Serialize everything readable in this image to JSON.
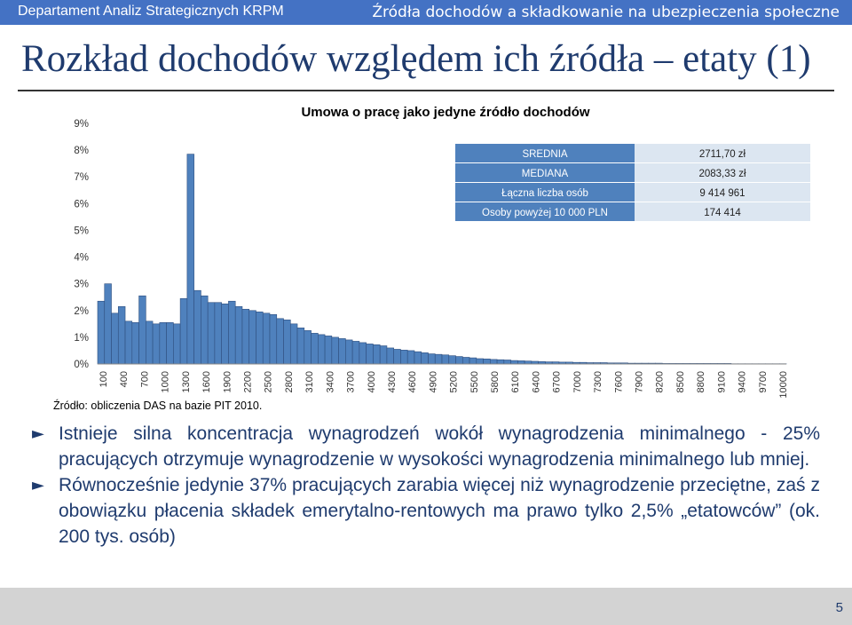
{
  "header": {
    "left_text": "Departament Analiz Strategicznych KRPM",
    "right_text": "Źródła dochodów a składkowanie na ubezpieczenia społeczne"
  },
  "slide": {
    "title": "Rozkład dochodów względem ich źródła – etaty (1)"
  },
  "chart_data": {
    "type": "bar",
    "title": "Umowa o pracę jako jedyne źródło dochodów",
    "xlabel": "",
    "ylabel": "",
    "ylim": [
      0,
      9
    ],
    "y_ticks": [
      "0%",
      "1%",
      "2%",
      "3%",
      "4%",
      "5%",
      "6%",
      "7%",
      "8%",
      "9%"
    ],
    "x_tick_labels": [
      "100",
      "400",
      "700",
      "1000",
      "1300",
      "1600",
      "1900",
      "2200",
      "2500",
      "2800",
      "3100",
      "3400",
      "3700",
      "4000",
      "4300",
      "4600",
      "4900",
      "5200",
      "5500",
      "5800",
      "6100",
      "6400",
      "6700",
      "7000",
      "7300",
      "7600",
      "7900",
      "8200",
      "8500",
      "8800",
      "9100",
      "9400",
      "9700",
      "10000"
    ],
    "values": [
      2.35,
      3.0,
      1.9,
      2.15,
      1.6,
      1.55,
      2.55,
      1.6,
      1.5,
      1.55,
      1.55,
      1.5,
      2.45,
      7.85,
      2.75,
      2.55,
      2.3,
      2.3,
      2.25,
      2.35,
      2.15,
      2.05,
      2.0,
      1.95,
      1.9,
      1.85,
      1.7,
      1.65,
      1.5,
      1.35,
      1.25,
      1.15,
      1.1,
      1.05,
      1.0,
      0.95,
      0.9,
      0.85,
      0.8,
      0.75,
      0.72,
      0.68,
      0.6,
      0.55,
      0.52,
      0.5,
      0.46,
      0.42,
      0.38,
      0.36,
      0.34,
      0.31,
      0.28,
      0.25,
      0.23,
      0.2,
      0.19,
      0.17,
      0.16,
      0.15,
      0.13,
      0.12,
      0.11,
      0.1,
      0.09,
      0.08,
      0.08,
      0.07,
      0.07,
      0.06,
      0.06,
      0.05,
      0.05,
      0.05,
      0.04,
      0.04,
      0.04,
      0.03,
      0.03,
      0.03,
      0.03,
      0.03,
      0.02,
      0.02,
      0.02,
      0.02,
      0.02,
      0.02,
      0.02,
      0.02,
      0.02,
      0.02,
      0.01,
      0.01,
      0.01,
      0.01,
      0.01,
      0.01,
      0.01,
      0.01
    ],
    "bar_color": "#4f81bd",
    "grid": false,
    "legend": "none",
    "stats_table": [
      {
        "label": "SREDNIA",
        "value": "2711,70 zł"
      },
      {
        "label": "MEDIANA",
        "value": "2083,33 zł"
      },
      {
        "label": "Łączna liczba osób",
        "value": "9 414 961"
      },
      {
        "label": "Osoby powyżej 10 000 PLN",
        "value": "174 414"
      }
    ]
  },
  "source_note": "Źródło: obliczenia DAS na bazie PIT 2010.",
  "bullets": [
    {
      "marker": "►",
      "text": "Istnieje silna koncentracja wynagrodzeń wokół wynagrodzenia minimalnego - 25% pracujących otrzymuje wynagrodzenie w wysokości wynagrodzenia minimalnego lub mniej."
    },
    {
      "marker": "►",
      "text": "Równocześnie jedynie 37% pracujących zarabia więcej niż wynagrodzenie przeciętne, zaś z obowiązku płacenia składek emerytalno-rentowych ma prawo tylko 2,5% „etatowców” (ok. 200 tys. osób)"
    }
  ],
  "footer": {
    "page_number": "5"
  },
  "colors": {
    "header_bg": "#4472c4",
    "title_text": "#1f3b6e",
    "bar": "#4f81bd",
    "table_label_bg": "#4f81bd",
    "table_value_bg": "#dce6f1",
    "footer_bg": "#d3d3d3"
  }
}
